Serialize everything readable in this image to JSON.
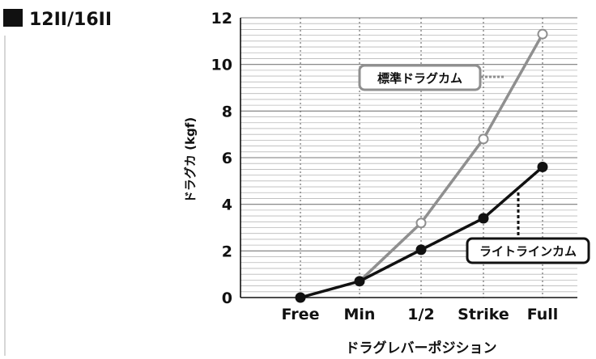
{
  "model_label": "12II/16II",
  "chart_data": {
    "type": "line",
    "categories": [
      "Free",
      "Min",
      "1/2",
      "Strike",
      "Full"
    ],
    "ylabel": "ドラグカ (kgf)",
    "xlabel": "ドラグレバーポジション",
    "ylim": [
      0,
      12
    ],
    "yticks": [
      0,
      2,
      4,
      6,
      8,
      10,
      12
    ],
    "grid": true,
    "series": [
      {
        "name": "標準ドラグカム",
        "color": "#8f8f8f",
        "marker": "open",
        "points": [
          [
            1,
            0.7
          ],
          [
            2,
            3.2
          ],
          [
            3,
            6.8
          ],
          [
            4,
            11.3
          ]
        ]
      },
      {
        "name": "ライトラインカム",
        "color": "#111111",
        "marker": "filled",
        "points": [
          [
            0,
            0
          ],
          [
            1,
            0.7
          ],
          [
            2,
            2.05
          ],
          [
            3,
            3.4
          ],
          [
            4,
            5.6
          ]
        ]
      }
    ]
  }
}
